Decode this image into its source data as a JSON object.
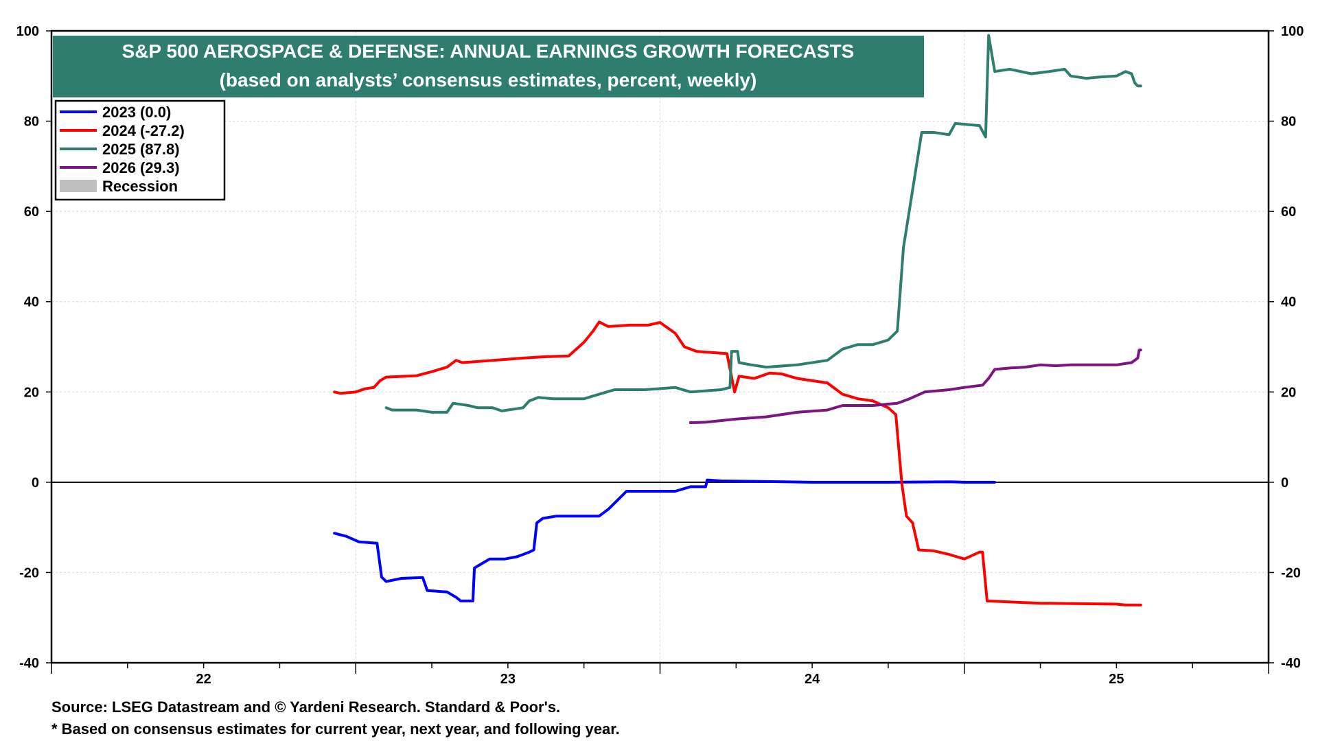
{
  "chart_data": {
    "type": "line",
    "title": "S&P 500 AEROSPACE & DEFENSE: ANNUAL EARNINGS GROWTH FORECASTS",
    "subtitle": "(based on analysts’ consensus estimates, percent, weekly)",
    "x_domain": [
      2021.5,
      2025.5
    ],
    "x_ticks": [
      {
        "label": "22",
        "value": 2022
      },
      {
        "label": "23",
        "value": 2023
      },
      {
        "label": "24",
        "value": 2024
      },
      {
        "label": "25",
        "value": 2025
      }
    ],
    "ylim": [
      -40,
      100
    ],
    "y_ticks": [
      "-40",
      "-20",
      "0",
      "20",
      "40",
      "60",
      "80",
      "100"
    ],
    "grid": true,
    "zero_line": true,
    "legend_position": "top-left",
    "series": [
      {
        "name": "2023 (0.0)",
        "color": "#0000ff",
        "points": [
          [
            2022.43,
            -11.3
          ],
          [
            2022.47,
            -12
          ],
          [
            2022.51,
            -13.2
          ],
          [
            2022.57,
            -13.5
          ],
          [
            2022.585,
            -21
          ],
          [
            2022.6,
            -22
          ],
          [
            2022.65,
            -21.3
          ],
          [
            2022.72,
            -21.1
          ],
          [
            2022.735,
            -24
          ],
          [
            2022.8,
            -24.3
          ],
          [
            2022.83,
            -25.5
          ],
          [
            2022.845,
            -26.3
          ],
          [
            2022.885,
            -26.3
          ],
          [
            2022.89,
            -19
          ],
          [
            2022.92,
            -17.8
          ],
          [
            2022.94,
            -17
          ],
          [
            2022.99,
            -17
          ],
          [
            2023.03,
            -16.5
          ],
          [
            2023.07,
            -15.5
          ],
          [
            2023.085,
            -15
          ],
          [
            2023.095,
            -9
          ],
          [
            2023.115,
            -8
          ],
          [
            2023.16,
            -7.5
          ],
          [
            2023.3,
            -7.5
          ],
          [
            2023.33,
            -6
          ],
          [
            2023.36,
            -4
          ],
          [
            2023.39,
            -2
          ],
          [
            2023.55,
            -2
          ],
          [
            2023.6,
            -1
          ],
          [
            2023.65,
            -1
          ],
          [
            2023.655,
            0.5
          ],
          [
            2023.7,
            0.3
          ],
          [
            2024.0,
            0
          ],
          [
            2024.25,
            0
          ],
          [
            2024.45,
            0.1
          ],
          [
            2024.5,
            0
          ],
          [
            2024.6,
            0
          ]
        ]
      },
      {
        "name": "2024 (-27.2)",
        "color": "#ff0000",
        "points": [
          [
            2022.43,
            20
          ],
          [
            2022.45,
            19.7
          ],
          [
            2022.5,
            20
          ],
          [
            2022.53,
            20.7
          ],
          [
            2022.56,
            21
          ],
          [
            2022.58,
            22.5
          ],
          [
            2022.6,
            23.3
          ],
          [
            2022.7,
            23.6
          ],
          [
            2022.75,
            24.5
          ],
          [
            2022.8,
            25.5
          ],
          [
            2022.83,
            27
          ],
          [
            2022.85,
            26.5
          ],
          [
            2022.95,
            27
          ],
          [
            2023.05,
            27.5
          ],
          [
            2023.12,
            27.8
          ],
          [
            2023.2,
            28
          ],
          [
            2023.25,
            31
          ],
          [
            2023.28,
            33.5
          ],
          [
            2023.3,
            35.5
          ],
          [
            2023.33,
            34.5
          ],
          [
            2023.4,
            34.8
          ],
          [
            2023.46,
            34.8
          ],
          [
            2023.5,
            35.4
          ],
          [
            2023.55,
            33
          ],
          [
            2023.58,
            30
          ],
          [
            2023.62,
            29
          ],
          [
            2023.72,
            28.5
          ],
          [
            2023.745,
            20
          ],
          [
            2023.76,
            23.5
          ],
          [
            2023.81,
            23
          ],
          [
            2023.86,
            24.2
          ],
          [
            2023.9,
            24
          ],
          [
            2023.95,
            23
          ],
          [
            2024.05,
            22
          ],
          [
            2024.1,
            19.5
          ],
          [
            2024.15,
            18.5
          ],
          [
            2024.2,
            18
          ],
          [
            2024.25,
            16.5
          ],
          [
            2024.275,
            15
          ],
          [
            2024.295,
            -0.5
          ],
          [
            2024.31,
            -7.5
          ],
          [
            2024.33,
            -9
          ],
          [
            2024.35,
            -15
          ],
          [
            2024.4,
            -15.2
          ],
          [
            2024.45,
            -16
          ],
          [
            2024.5,
            -17
          ],
          [
            2024.55,
            -15.5
          ],
          [
            2024.56,
            -15.5
          ],
          [
            2024.575,
            -26.3
          ],
          [
            2024.75,
            -26.8
          ],
          [
            2025.0,
            -27
          ],
          [
            2025.03,
            -27.2
          ],
          [
            2025.08,
            -27.2
          ]
        ]
      },
      {
        "name": "2025 (87.8)",
        "color": "#2e7d6e",
        "points": [
          [
            2022.6,
            16.5
          ],
          [
            2022.62,
            16
          ],
          [
            2022.7,
            16
          ],
          [
            2022.75,
            15.5
          ],
          [
            2022.8,
            15.5
          ],
          [
            2022.82,
            17.5
          ],
          [
            2022.87,
            17
          ],
          [
            2022.9,
            16.5
          ],
          [
            2022.95,
            16.5
          ],
          [
            2022.98,
            15.8
          ],
          [
            2023.05,
            16.5
          ],
          [
            2023.07,
            18
          ],
          [
            2023.1,
            18.8
          ],
          [
            2023.15,
            18.5
          ],
          [
            2023.25,
            18.5
          ],
          [
            2023.3,
            19.5
          ],
          [
            2023.35,
            20.5
          ],
          [
            2023.45,
            20.5
          ],
          [
            2023.55,
            21
          ],
          [
            2023.6,
            20
          ],
          [
            2023.7,
            20.5
          ],
          [
            2023.73,
            21
          ],
          [
            2023.735,
            29
          ],
          [
            2023.755,
            29
          ],
          [
            2023.76,
            26.5
          ],
          [
            2023.8,
            26
          ],
          [
            2023.85,
            25.5
          ],
          [
            2023.95,
            26
          ],
          [
            2024.05,
            27
          ],
          [
            2024.1,
            29.5
          ],
          [
            2024.15,
            30.5
          ],
          [
            2024.2,
            30.5
          ],
          [
            2024.25,
            31.5
          ],
          [
            2024.28,
            33.5
          ],
          [
            2024.3,
            52
          ],
          [
            2024.32,
            60.5
          ],
          [
            2024.36,
            77.5
          ],
          [
            2024.4,
            77.5
          ],
          [
            2024.45,
            77
          ],
          [
            2024.47,
            79.5
          ],
          [
            2024.55,
            79
          ],
          [
            2024.57,
            76.5
          ],
          [
            2024.58,
            99
          ],
          [
            2024.6,
            91
          ],
          [
            2024.65,
            91.5
          ],
          [
            2024.72,
            90.5
          ],
          [
            2024.78,
            91
          ],
          [
            2024.83,
            91.5
          ],
          [
            2024.85,
            90
          ],
          [
            2024.9,
            89.5
          ],
          [
            2024.95,
            89.8
          ],
          [
            2025.0,
            90
          ],
          [
            2025.03,
            91
          ],
          [
            2025.05,
            90.5
          ],
          [
            2025.06,
            88.5
          ],
          [
            2025.07,
            87.8
          ],
          [
            2025.08,
            87.8
          ]
        ]
      },
      {
        "name": "2026 (29.3)",
        "color": "#7b1580",
        "points": [
          [
            2023.6,
            13.2
          ],
          [
            2023.65,
            13.3
          ],
          [
            2023.75,
            14
          ],
          [
            2023.85,
            14.5
          ],
          [
            2023.95,
            15.5
          ],
          [
            2024.05,
            16
          ],
          [
            2024.1,
            17
          ],
          [
            2024.2,
            17
          ],
          [
            2024.28,
            17.5
          ],
          [
            2024.32,
            18.5
          ],
          [
            2024.37,
            20
          ],
          [
            2024.45,
            20.5
          ],
          [
            2024.5,
            21
          ],
          [
            2024.56,
            21.5
          ],
          [
            2024.58,
            23
          ],
          [
            2024.6,
            25
          ],
          [
            2024.65,
            25.3
          ],
          [
            2024.7,
            25.5
          ],
          [
            2024.75,
            26
          ],
          [
            2024.8,
            25.8
          ],
          [
            2024.85,
            26
          ],
          [
            2024.92,
            26
          ],
          [
            2025.0,
            26
          ],
          [
            2025.05,
            26.5
          ],
          [
            2025.07,
            27.5
          ],
          [
            2025.075,
            29.3
          ],
          [
            2025.08,
            29.3
          ]
        ]
      },
      {
        "name": "Recession",
        "color": "#c0c0c0",
        "points": []
      }
    ]
  },
  "footnotes": {
    "source": "Source: LSEG Datastream and © Yardeni Research. Standard & Poor's.",
    "note": "* Based on consensus estimates for current year, next year, and following year."
  }
}
